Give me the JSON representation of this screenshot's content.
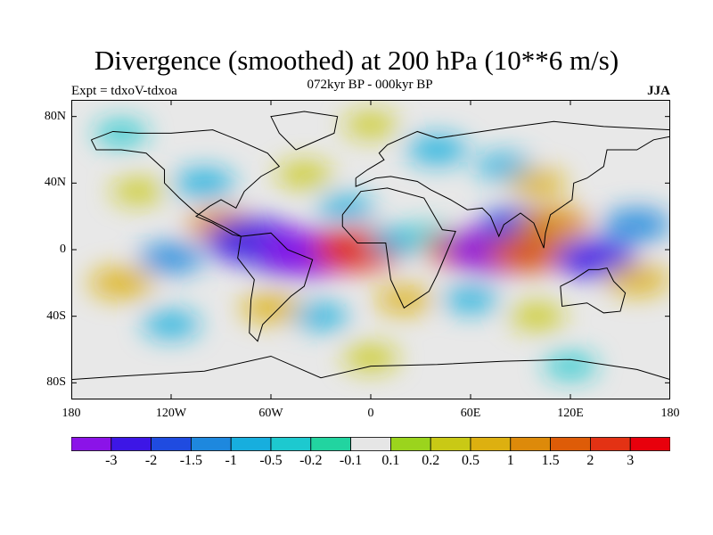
{
  "header": {
    "title": "Divergence (smoothed) at 200 hPa (10**6 m/s)",
    "subtitle": "072kyr BP - 000kyr BP",
    "left_label": "Expt = tdxoV-tdxoa",
    "right_label": "JJA"
  },
  "map": {
    "projection": "cylindrical-equidistant",
    "lon_range": [
      -180,
      180
    ],
    "lat_range": [
      -90,
      90
    ],
    "y_ticks": [
      {
        "lat": 80,
        "label": "80N"
      },
      {
        "lat": 40,
        "label": "40N"
      },
      {
        "lat": 0,
        "label": "0"
      },
      {
        "lat": -40,
        "label": "40S"
      },
      {
        "lat": -80,
        "label": "80S"
      }
    ],
    "x_ticks": [
      {
        "lon": -180,
        "label": "180"
      },
      {
        "lon": -120,
        "label": "120W"
      },
      {
        "lon": -60,
        "label": "60W"
      },
      {
        "lon": 0,
        "label": "0"
      },
      {
        "lon": 60,
        "label": "60E"
      },
      {
        "lon": 120,
        "label": "120E"
      },
      {
        "lon": 180,
        "label": "180"
      }
    ],
    "background_color": "#e8e8e8",
    "fields": [
      {
        "lon": -90,
        "lat": 15,
        "v": 1.2
      },
      {
        "lon": -70,
        "lat": 5,
        "v": -2.8
      },
      {
        "lon": -52,
        "lat": -5,
        "v": -1.5
      },
      {
        "lon": -38,
        "lat": -2,
        "v": -3.0
      },
      {
        "lon": -8,
        "lat": 0,
        "v": 2.5
      },
      {
        "lon": -15,
        "lat": 25,
        "v": -0.5
      },
      {
        "lon": 15,
        "lat": 5,
        "v": -0.5
      },
      {
        "lon": 35,
        "lat": 8,
        "v": -0.3
      },
      {
        "lon": 55,
        "lat": 0,
        "v": 1.6
      },
      {
        "lon": 75,
        "lat": 0,
        "v": -3.0
      },
      {
        "lon": 88,
        "lat": 15,
        "v": -1.5
      },
      {
        "lon": 95,
        "lat": -2,
        "v": 2.0
      },
      {
        "lon": 110,
        "lat": 15,
        "v": 1.5
      },
      {
        "lon": 135,
        "lat": -5,
        "v": -2.0
      },
      {
        "lon": 160,
        "lat": 15,
        "v": -1.2
      },
      {
        "lon": 160,
        "lat": -18,
        "v": 1.0
      },
      {
        "lon": -150,
        "lat": -20,
        "v": 1.0
      },
      {
        "lon": -120,
        "lat": -5,
        "v": -1.0
      },
      {
        "lon": -140,
        "lat": 35,
        "v": 0.4
      },
      {
        "lon": -100,
        "lat": 40,
        "v": -0.8
      },
      {
        "lon": -40,
        "lat": 45,
        "v": 0.5
      },
      {
        "lon": 40,
        "lat": 60,
        "v": -0.8
      },
      {
        "lon": 80,
        "lat": 50,
        "v": -0.5
      },
      {
        "lon": 100,
        "lat": 40,
        "v": 0.6
      },
      {
        "lon": -60,
        "lat": -35,
        "v": 0.8
      },
      {
        "lon": -30,
        "lat": -40,
        "v": -0.5
      },
      {
        "lon": 20,
        "lat": -30,
        "v": 0.6
      },
      {
        "lon": 60,
        "lat": -30,
        "v": -0.5
      },
      {
        "lon": 100,
        "lat": -40,
        "v": 0.5
      },
      {
        "lon": -120,
        "lat": -45,
        "v": -0.6
      },
      {
        "lon": 0,
        "lat": -65,
        "v": 0.5
      },
      {
        "lon": 120,
        "lat": -70,
        "v": -0.4
      },
      {
        "lon": -150,
        "lat": 70,
        "v": -0.4
      },
      {
        "lon": 0,
        "lat": 75,
        "v": 0.4
      }
    ]
  },
  "colorbar": {
    "colors": [
      "#8b13e8",
      "#3d16e6",
      "#1f4be0",
      "#1e88de",
      "#17aede",
      "#1dc9cf",
      "#22d4a0",
      "#e6e6e6",
      "#9bd41d",
      "#c9c915",
      "#ddb010",
      "#dd8a0a",
      "#de5c08",
      "#e33214",
      "#e8000c"
    ],
    "labels": [
      "-3",
      "-2",
      "-1.5",
      "-1",
      "-0.5",
      "-0.2",
      "-0.1",
      "0.1",
      "0.2",
      "0.5",
      "1",
      "1.5",
      "2",
      "3"
    ],
    "levels": [
      -3,
      -2,
      -1.5,
      -1,
      -0.5,
      -0.2,
      -0.1,
      0.1,
      0.2,
      0.5,
      1,
      1.5,
      2,
      3
    ]
  }
}
